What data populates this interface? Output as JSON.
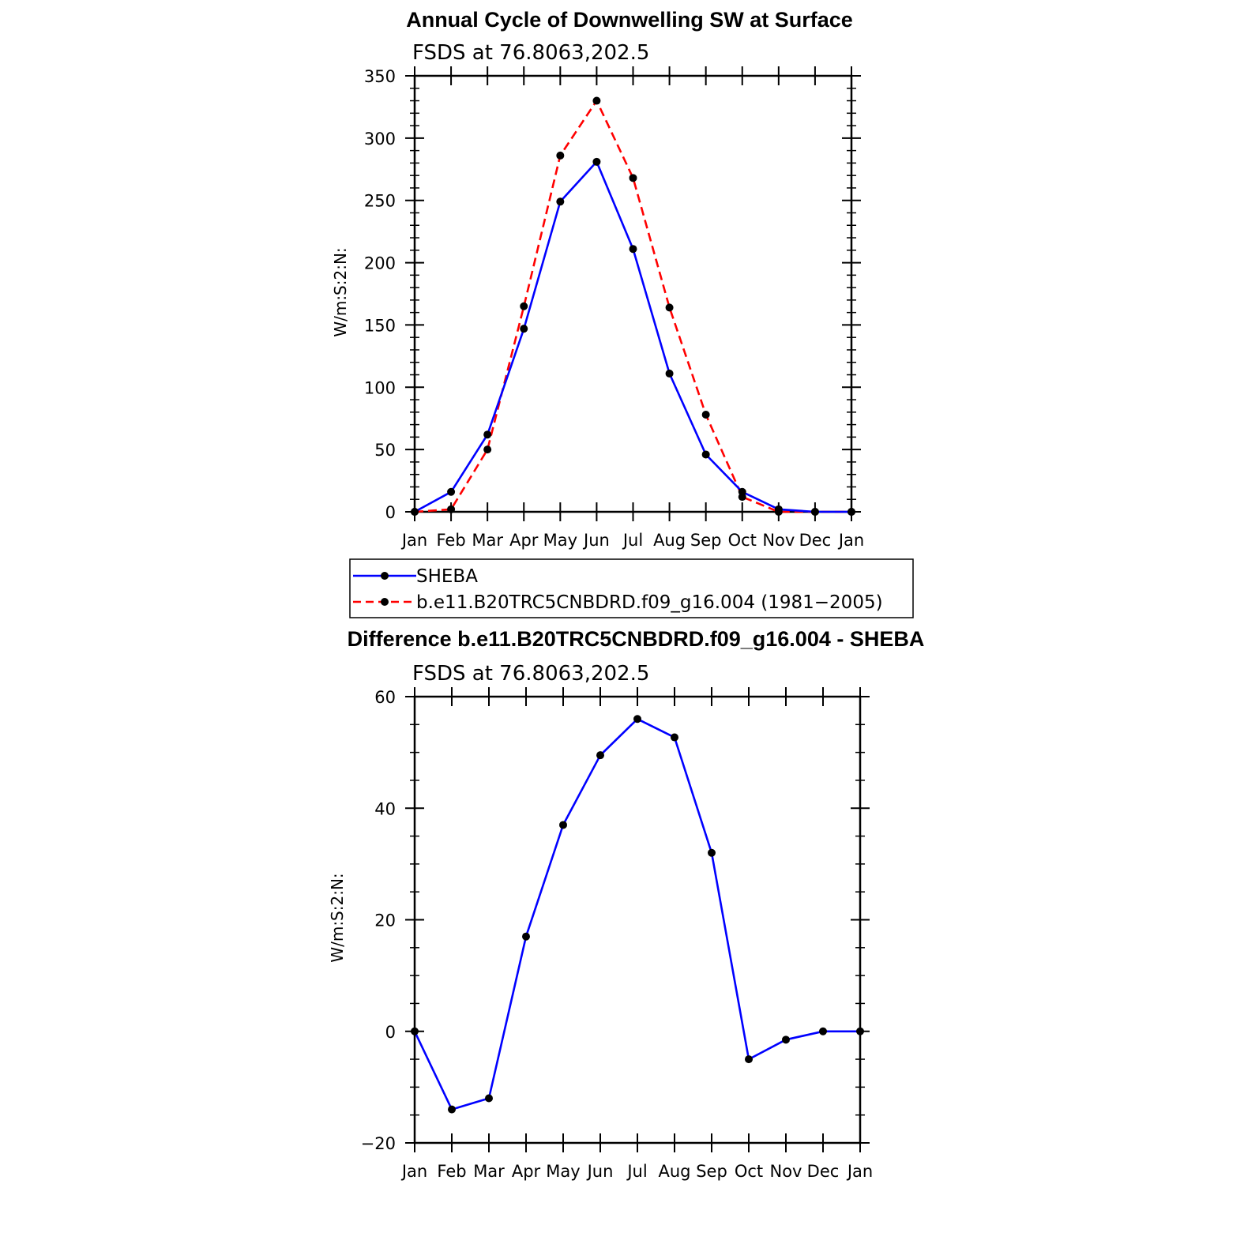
{
  "chart_data": [
    {
      "type": "line",
      "title": "Annual Cycle of Downwelling SW at Surface",
      "subtitle": "FSDS at 76.8063,202.5",
      "xlabel": "",
      "ylabel": "W/m:S:2:N:",
      "categories": [
        "Jan",
        "Feb",
        "Mar",
        "Apr",
        "May",
        "Jun",
        "Jul",
        "Aug",
        "Sep",
        "Oct",
        "Nov",
        "Dec",
        "Jan"
      ],
      "ylim": [
        0,
        350
      ],
      "yticks": [
        0,
        50,
        100,
        150,
        200,
        250,
        300,
        350
      ],
      "series": [
        {
          "name": "SHEBA",
          "color": "#0000ff",
          "dash": "solid",
          "values": [
            0,
            16,
            62,
            147,
            249,
            281,
            211,
            111,
            46,
            16,
            2,
            0,
            0
          ]
        },
        {
          "name": "b.e11.B20TRC5CNBDRD.f09_g16.004 (1981−2005)",
          "color": "#ff0000",
          "dash": "dashed",
          "values": [
            0,
            2,
            50,
            165,
            286,
            330,
            268,
            164,
            78,
            12,
            0,
            0,
            0
          ]
        }
      ],
      "legend": "below"
    },
    {
      "type": "line",
      "title": "Difference b.e11.B20TRC5CNBDRD.f09_g16.004 - SHEBA",
      "subtitle": "FSDS at 76.8063,202.5",
      "xlabel": "",
      "ylabel": "W/m:S:2:N:",
      "categories": [
        "Jan",
        "Feb",
        "Mar",
        "Apr",
        "May",
        "Jun",
        "Jul",
        "Aug",
        "Sep",
        "Oct",
        "Nov",
        "Dec",
        "Jan"
      ],
      "ylim": [
        -20,
        60
      ],
      "yticks": [
        -20,
        0,
        20,
        40,
        60
      ],
      "ytick_labels": [
        "−20",
        "0",
        "20",
        "40",
        "60"
      ],
      "series": [
        {
          "color": "#0000ff",
          "dash": "solid",
          "values": [
            0,
            -14,
            -12,
            17,
            37,
            49.5,
            56,
            52.7,
            32,
            -5,
            -1.5,
            0,
            0
          ]
        }
      ]
    }
  ]
}
